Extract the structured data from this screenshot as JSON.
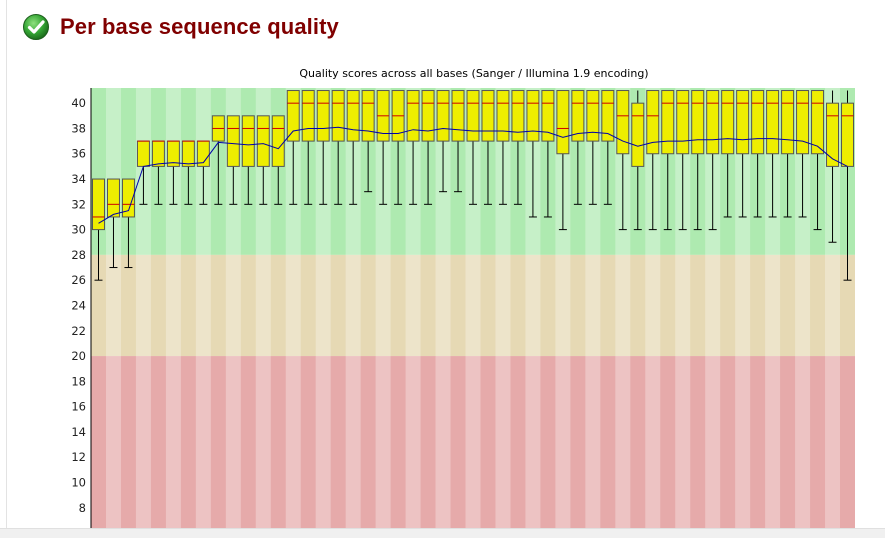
{
  "section": {
    "title": "Per base sequence quality",
    "status_icon": "pass-check-icon"
  },
  "colors": {
    "title": "#800000",
    "good_zone": "#aeeab0",
    "warn_zone": "#e6d9b4",
    "fail_zone": "#e6aaaa",
    "box_fill": "#eeee00",
    "box_stroke": "#555555",
    "median": "#cc0000",
    "mean_line": "#0000aa",
    "icon": "#2e9e2e"
  },
  "chart_data": {
    "type": "box",
    "title": "Quality scores across all bases (Sanger / Illumina 1.9 encoding)",
    "xlabel": "",
    "ylabel": "",
    "ylim": [
      6.4,
      41.2
    ],
    "yticks": [
      8,
      10,
      12,
      14,
      16,
      18,
      20,
      22,
      24,
      26,
      28,
      30,
      32,
      34,
      36,
      38,
      40
    ],
    "zones": [
      {
        "name": "good",
        "from": 28,
        "to": 41.2
      },
      {
        "name": "warn",
        "from": 20,
        "to": 28
      },
      {
        "name": "fail",
        "from": 6.4,
        "to": 20
      }
    ],
    "positions": 51,
    "series": [
      {
        "name": "q10",
        "values": [
          26,
          27,
          27,
          32,
          32,
          32,
          32,
          32,
          32,
          32,
          32,
          32,
          32,
          32,
          32,
          32,
          32,
          32,
          33,
          32,
          32,
          32,
          32,
          33,
          33,
          32,
          32,
          32,
          32,
          31,
          31,
          30,
          32,
          32,
          32,
          30,
          30,
          30,
          30,
          30,
          30,
          30,
          31,
          31,
          31,
          31,
          31,
          31,
          30,
          29,
          26
        ]
      },
      {
        "name": "q25",
        "values": [
          30,
          31,
          31,
          35,
          35,
          35,
          35,
          35,
          37,
          35,
          35,
          35,
          35,
          37,
          37,
          37,
          37,
          37,
          37,
          37,
          37,
          37,
          37,
          37,
          37,
          37,
          37,
          37,
          37,
          37,
          37,
          36,
          37,
          37,
          37,
          36,
          35,
          36,
          36,
          36,
          36,
          36,
          36,
          36,
          36,
          36,
          36,
          36,
          36,
          35,
          35
        ]
      },
      {
        "name": "median",
        "values": [
          31,
          32,
          32,
          37,
          37,
          37,
          37,
          37,
          38,
          38,
          38,
          38,
          38,
          40,
          40,
          40,
          40,
          40,
          40,
          39,
          39,
          40,
          40,
          40,
          40,
          40,
          40,
          40,
          40,
          40,
          40,
          38,
          40,
          40,
          40,
          39,
          39,
          39,
          40,
          40,
          40,
          40,
          40,
          40,
          40,
          40,
          40,
          40,
          40,
          39,
          39
        ]
      },
      {
        "name": "q75",
        "values": [
          34,
          34,
          34,
          37,
          37,
          37,
          37,
          37,
          39,
          39,
          39,
          39,
          39,
          41,
          41,
          41,
          41,
          41,
          41,
          41,
          41,
          41,
          41,
          41,
          41,
          41,
          41,
          41,
          41,
          41,
          41,
          41,
          41,
          41,
          41,
          41,
          40,
          41,
          41,
          41,
          41,
          41,
          41,
          41,
          41,
          41,
          41,
          41,
          41,
          40,
          40
        ]
      },
      {
        "name": "q90",
        "values": [
          34,
          34,
          34,
          37,
          37,
          37,
          37,
          37,
          39,
          39,
          39,
          39,
          39,
          41,
          41,
          41,
          41,
          41,
          41,
          41,
          41,
          41,
          41,
          41,
          41,
          41,
          41,
          41,
          41,
          41,
          41,
          41,
          41,
          41,
          41,
          41,
          41,
          41,
          41,
          41,
          41,
          41,
          41,
          41,
          41,
          41,
          41,
          41,
          41,
          41,
          41
        ]
      },
      {
        "name": "mean",
        "values": [
          30.5,
          31.2,
          31.5,
          35.0,
          35.2,
          35.3,
          35.2,
          35.3,
          36.9,
          36.8,
          36.7,
          36.8,
          36.4,
          37.8,
          38.0,
          38.0,
          38.1,
          37.9,
          37.8,
          37.6,
          37.6,
          37.9,
          37.8,
          38.0,
          37.9,
          37.8,
          37.8,
          37.8,
          37.7,
          37.8,
          37.7,
          37.3,
          37.6,
          37.7,
          37.6,
          37.0,
          36.6,
          36.9,
          37.0,
          37.0,
          37.1,
          37.1,
          37.2,
          37.1,
          37.2,
          37.2,
          37.1,
          37.0,
          36.6,
          35.6,
          35.0
        ]
      }
    ]
  }
}
